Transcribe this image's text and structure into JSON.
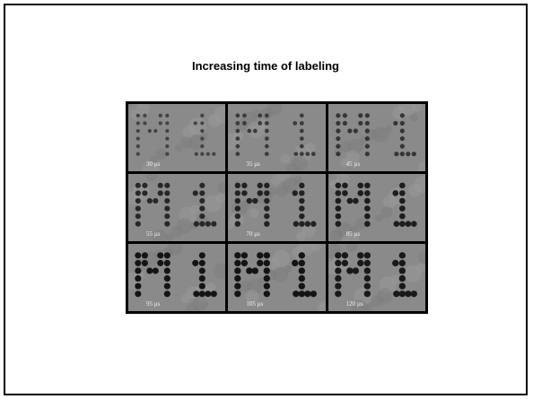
{
  "slide": {
    "title": "Increasing time of labeling"
  },
  "figure": {
    "panels": [
      {
        "label": "30 µs",
        "dot_scale": 0.35,
        "darkness": 0.45
      },
      {
        "label": "35 µs",
        "dot_scale": 0.45,
        "darkness": 0.55
      },
      {
        "label": "45 µs",
        "dot_scale": 0.55,
        "darkness": 0.6
      },
      {
        "label": "55 µs",
        "dot_scale": 0.75,
        "darkness": 0.75
      },
      {
        "label": "70 µs",
        "dot_scale": 0.8,
        "darkness": 0.8
      },
      {
        "label": "85 µs",
        "dot_scale": 0.85,
        "darkness": 0.85
      },
      {
        "label": "95 µs",
        "dot_scale": 0.95,
        "darkness": 0.95
      },
      {
        "label": "105 µs",
        "dot_scale": 1.0,
        "darkness": 0.95
      },
      {
        "label": "120 µs",
        "dot_scale": 1.0,
        "darkness": 0.9
      }
    ]
  },
  "colors": {
    "background_gray": "#8a8a8a",
    "dot": "#1a1a1a"
  }
}
